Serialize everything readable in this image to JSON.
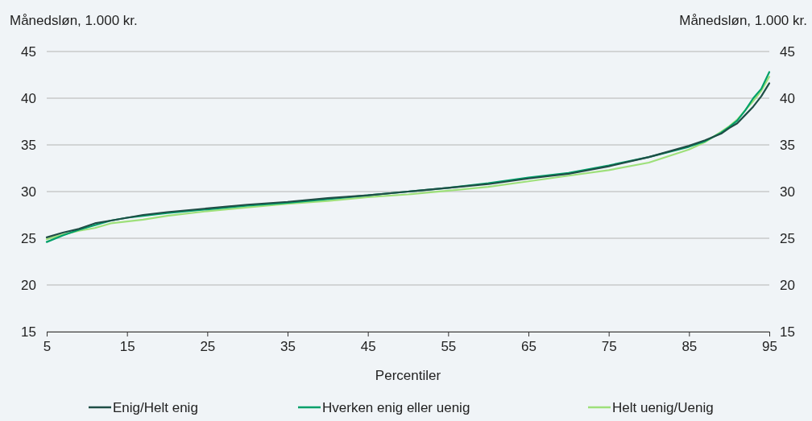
{
  "chart_data": {
    "type": "line",
    "xlabel": "Percentiler",
    "ylabel": "Månedsløn, 1.000 kr.",
    "y2label": "Månedsløn, 1.000 kr.",
    "x": [
      5,
      7,
      9,
      11,
      13,
      15,
      17,
      20,
      25,
      30,
      35,
      40,
      45,
      50,
      55,
      60,
      65,
      70,
      75,
      80,
      85,
      87,
      89,
      90,
      91,
      92,
      93,
      94,
      95
    ],
    "series": [
      {
        "name": "Enig/Helt enig",
        "color": "#1f4e46",
        "values": [
          25.1,
          25.6,
          26.0,
          26.6,
          26.9,
          27.2,
          27.5,
          27.8,
          28.2,
          28.6,
          28.9,
          29.3,
          29.6,
          30.0,
          30.4,
          30.8,
          31.4,
          31.9,
          32.7,
          33.7,
          34.9,
          35.5,
          36.2,
          36.8,
          37.3,
          38.2,
          39.1,
          40.2,
          41.6
        ]
      },
      {
        "name": "Hverken enig eller uenig",
        "color": "#00a06a",
        "values": [
          24.6,
          25.3,
          25.9,
          26.4,
          26.9,
          27.2,
          27.4,
          27.7,
          28.1,
          28.5,
          28.8,
          29.2,
          29.6,
          30.0,
          30.4,
          30.9,
          31.5,
          32.0,
          32.8,
          33.7,
          34.8,
          35.4,
          36.3,
          36.9,
          37.6,
          38.7,
          40.0,
          41.0,
          42.8
        ]
      },
      {
        "name": "Helt uenig/Uenig",
        "color": "#9ee07a",
        "values": [
          24.9,
          25.4,
          25.8,
          26.1,
          26.6,
          26.8,
          27.0,
          27.4,
          27.9,
          28.3,
          28.7,
          29.0,
          29.4,
          29.7,
          30.1,
          30.5,
          31.1,
          31.7,
          32.3,
          33.1,
          34.5,
          35.3,
          36.4,
          37.0,
          37.7,
          38.7,
          39.7,
          40.8,
          42.3
        ]
      }
    ],
    "xlim": [
      5,
      95
    ],
    "xticks": [
      5,
      15,
      25,
      35,
      45,
      55,
      65,
      75,
      85,
      95
    ],
    "ylim": [
      15,
      45
    ],
    "yticks": [
      15,
      20,
      25,
      30,
      35,
      40,
      45
    ],
    "y2lim": [
      15,
      45
    ],
    "y2ticks": [
      15,
      20,
      25,
      30,
      35,
      40,
      45
    ],
    "grid": "y",
    "legend": "bottom",
    "marker": "none",
    "line_style": "solid"
  }
}
